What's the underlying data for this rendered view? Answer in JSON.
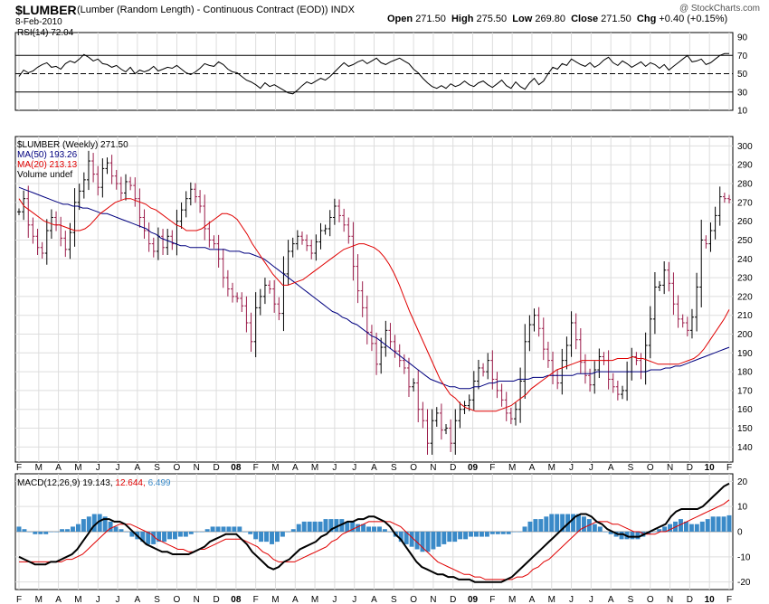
{
  "header": {
    "symbol": "$LUMBER",
    "description": "(Lumber (Random Length) - Continuous Contract (EOD))",
    "exchange": "INDX",
    "date": "8-Feb-2010",
    "watermark": "@ StockCharts.com",
    "open_label": "Open",
    "open_value": "271.50",
    "high_label": "High",
    "high_value": "275.50",
    "low_label": "Low",
    "low_value": "269.80",
    "close_label": "Close",
    "close_value": "271.50",
    "chg_label": "Chg",
    "chg_value": "+0.40 (+0.15%)"
  },
  "colors": {
    "price_bar": "#000000",
    "price_bar_down": "#9b1c4a",
    "ma50": "#00007f",
    "ma20": "#e00000",
    "macd": "#000000",
    "signal": "#e00000",
    "histogram": "#3a8ac8",
    "grid": "#dddddd"
  },
  "rsi_panel": {
    "label": "RSI(14) 72.04"
  },
  "price_panel": {
    "legend_main": "$LUMBER (Weekly) 271.50",
    "legend_ma50": "MA(50) 193.26",
    "legend_ma20": "MA(20) 213.13",
    "legend_volume": "Volume undef"
  },
  "macd_panel": {
    "label_prefix": "MACD(12,26,9)",
    "macd_value": "19.143,",
    "signal_value": "12.644,",
    "hist_value": "6.499"
  },
  "chart_data": [
    {
      "type": "line",
      "panel": "RSI",
      "ylim": [
        10,
        95
      ],
      "y_ticks": [
        10,
        30,
        50,
        70,
        90
      ],
      "reference_lines": [
        30,
        50,
        70
      ],
      "series": [
        {
          "name": "RSI(14)",
          "y": [
            47,
            54,
            51,
            53,
            57,
            60,
            62,
            57,
            58,
            55,
            61,
            64,
            62,
            66,
            71,
            68,
            64,
            66,
            61,
            60,
            57,
            59,
            55,
            52,
            57,
            50,
            54,
            52,
            54,
            58,
            53,
            55,
            57,
            56,
            59,
            55,
            51,
            49,
            52,
            56,
            61,
            59,
            58,
            63,
            60,
            55,
            52,
            51,
            47,
            43,
            41,
            38,
            34,
            40,
            36,
            38,
            35,
            32,
            29,
            28,
            32,
            37,
            41,
            39,
            42,
            45,
            43,
            47,
            52,
            57,
            62,
            58,
            60,
            63,
            65,
            61,
            64,
            67,
            62,
            60,
            63,
            65,
            67,
            64,
            61,
            55,
            51,
            45,
            40,
            36,
            34,
            37,
            34,
            39,
            36,
            38,
            42,
            38,
            36,
            40,
            42,
            38,
            35,
            39,
            43,
            37,
            34,
            41,
            36,
            33,
            40,
            45,
            38,
            42,
            50,
            57,
            55,
            61,
            59,
            66,
            63,
            60,
            58,
            62,
            57,
            60,
            65,
            68,
            62,
            59,
            64,
            61,
            57,
            60,
            63,
            58,
            62,
            60,
            56,
            60,
            54,
            58,
            62,
            66,
            70,
            63,
            64,
            66,
            60,
            62,
            66,
            70,
            72,
            72
          ]
        }
      ]
    },
    {
      "type": "ohlc",
      "panel": "Price",
      "ylim": [
        132,
        305
      ],
      "y_ticks": [
        140,
        150,
        160,
        170,
        180,
        190,
        200,
        210,
        220,
        230,
        240,
        250,
        260,
        270,
        280,
        290,
        300
      ],
      "series": [
        {
          "name": "$LUMBER",
          "close": [
            265,
            272,
            258,
            252,
            246,
            243,
            255,
            262,
            258,
            251,
            245,
            254,
            270,
            276,
            282,
            292,
            285,
            278,
            288,
            291,
            284,
            280,
            275,
            281,
            279,
            272,
            262,
            255,
            248,
            244,
            252,
            246,
            252,
            248,
            260,
            266,
            272,
            277,
            273,
            268,
            256,
            250,
            248,
            240,
            230,
            224,
            220,
            219,
            215,
            206,
            196,
            214,
            220,
            226,
            224,
            216,
            211,
            232,
            244,
            248,
            252,
            250,
            247,
            243,
            249,
            255,
            256,
            262,
            268,
            263,
            258,
            252,
            236,
            223,
            214,
            201,
            195,
            184,
            193,
            202,
            196,
            191,
            186,
            182,
            172,
            174,
            160,
            154,
            142,
            154,
            158,
            149,
            150,
            142,
            154,
            160,
            162,
            165,
            175,
            182,
            180,
            186,
            176,
            170,
            165,
            158,
            155,
            160,
            175,
            196,
            205,
            210,
            203,
            192,
            186,
            178,
            174,
            186,
            194,
            206,
            197,
            185,
            178,
            173,
            181,
            188,
            186,
            176,
            172,
            168,
            170,
            180,
            188,
            186,
            180,
            194,
            208,
            225,
            226,
            234,
            227,
            216,
            208,
            206,
            202,
            209,
            225,
            250,
            248,
            255,
            263,
            273,
            272,
            271.5
          ]
        },
        {
          "name": "MA(50)",
          "y": [
            278,
            277,
            276,
            275,
            274,
            273,
            272,
            271,
            270,
            269,
            269,
            268,
            268,
            267,
            267,
            266,
            265,
            264,
            264,
            263,
            262,
            261,
            260,
            259,
            258,
            257,
            256,
            254,
            253,
            251,
            250,
            249,
            248,
            247,
            247,
            246,
            246,
            246,
            246,
            245,
            245,
            245,
            245,
            244,
            244,
            244,
            243,
            243,
            242,
            241,
            240,
            238,
            236,
            234,
            232,
            230,
            228,
            226,
            224,
            222,
            220,
            218,
            216,
            214,
            212,
            211,
            209,
            208,
            206,
            205,
            203,
            201,
            199,
            198,
            196,
            194,
            192,
            190,
            188,
            186,
            184,
            182,
            180,
            178,
            176,
            175,
            174,
            173,
            172,
            172,
            171,
            171,
            171,
            172,
            172,
            173,
            174,
            174,
            175,
            175,
            175,
            175,
            176,
            176,
            176,
            177,
            177,
            177,
            178,
            178,
            178,
            178,
            178,
            178,
            179,
            179,
            179,
            179,
            180,
            180,
            180,
            180,
            180,
            180,
            180,
            180,
            180,
            180,
            180,
            181,
            181,
            181,
            182,
            182,
            183,
            183,
            184,
            185,
            186,
            187,
            188,
            189,
            190,
            191,
            192,
            193
          ]
        },
        {
          "name": "MA(20)",
          "y": [
            272,
            268,
            266,
            264,
            262,
            260,
            259,
            258,
            258,
            257,
            256,
            255,
            255,
            256,
            258,
            261,
            264,
            266,
            268,
            270,
            271,
            272,
            272,
            271,
            270,
            269,
            267,
            266,
            264,
            262,
            260,
            258,
            257,
            255,
            255,
            255,
            256,
            258,
            260,
            262,
            264,
            264,
            263,
            261,
            257,
            253,
            248,
            244,
            240,
            236,
            232,
            229,
            226,
            226,
            227,
            228,
            229,
            231,
            233,
            235,
            237,
            239,
            241,
            243,
            245,
            246,
            247,
            248,
            248,
            247,
            246,
            244,
            241,
            237,
            232,
            226,
            219,
            212,
            206,
            200,
            194,
            188,
            182,
            176,
            172,
            168,
            166,
            163,
            161,
            160,
            159,
            159,
            159,
            159,
            159,
            160,
            161,
            162,
            164,
            166,
            168,
            171,
            173,
            175,
            177,
            179,
            181,
            182,
            183,
            184,
            185,
            186,
            186,
            186,
            186,
            186,
            186,
            186,
            187,
            187,
            187,
            188,
            187,
            187,
            186,
            185,
            184,
            184,
            184,
            184,
            184,
            185,
            186,
            187,
            189,
            192,
            196,
            200,
            204,
            208,
            213
          ]
        }
      ]
    },
    {
      "type": "line",
      "panel": "MACD",
      "ylim": [
        -23,
        23
      ],
      "y_ticks": [
        -20,
        -10,
        0,
        10,
        20
      ],
      "series": [
        {
          "name": "MACD",
          "y": [
            -10,
            -11,
            -12,
            -13,
            -13,
            -13,
            -12,
            -12,
            -11,
            -10,
            -9,
            -7,
            -4,
            -1,
            2,
            4,
            5,
            5,
            4,
            4,
            3,
            1,
            -1,
            -3,
            -5,
            -6,
            -7,
            -8,
            -8,
            -9,
            -9,
            -9,
            -9,
            -8,
            -7,
            -6,
            -4,
            -3,
            -2,
            -1,
            -1,
            -1,
            -3,
            -5,
            -8,
            -10,
            -12,
            -14,
            -15,
            -14,
            -12,
            -11,
            -9,
            -7,
            -6,
            -5,
            -4,
            -2,
            -1,
            1,
            2,
            3,
            4,
            4,
            5,
            5,
            6,
            6,
            5,
            4,
            2,
            -1,
            -3,
            -6,
            -9,
            -12,
            -14,
            -15,
            -16,
            -17,
            -17,
            -18,
            -18,
            -19,
            -19,
            -19,
            -20,
            -20,
            -20,
            -20,
            -20,
            -20,
            -19,
            -18,
            -16,
            -14,
            -12,
            -10,
            -8,
            -6,
            -4,
            -2,
            0,
            2,
            4,
            6,
            7,
            7,
            6,
            4,
            3,
            1,
            0,
            -1,
            -1,
            -2,
            -2,
            -2,
            -1,
            0,
            1,
            2,
            3,
            6,
            8,
            9,
            9,
            9,
            9,
            10,
            12,
            14,
            16,
            18,
            19.143
          ]
        },
        {
          "name": "Signal",
          "y": [
            -12,
            -12,
            -12,
            -12,
            -12,
            -12,
            -12,
            -12,
            -12,
            -11,
            -11,
            -10,
            -9,
            -7,
            -5,
            -3,
            -1,
            1,
            2,
            3,
            3,
            3,
            2,
            1,
            0,
            -1,
            -3,
            -4,
            -5,
            -6,
            -7,
            -7,
            -8,
            -8,
            -7,
            -7,
            -6,
            -5,
            -4,
            -3,
            -3,
            -3,
            -3,
            -4,
            -5,
            -6,
            -8,
            -9,
            -11,
            -12,
            -12,
            -12,
            -12,
            -11,
            -10,
            -9,
            -8,
            -7,
            -6,
            -4,
            -3,
            -1,
            0,
            1,
            2,
            3,
            4,
            4,
            4,
            4,
            4,
            3,
            2,
            0,
            -2,
            -4,
            -6,
            -8,
            -10,
            -12,
            -13,
            -14,
            -15,
            -16,
            -17,
            -17,
            -18,
            -18,
            -19,
            -19,
            -19,
            -19,
            -19,
            -19,
            -18,
            -18,
            -17,
            -15,
            -14,
            -12,
            -11,
            -9,
            -7,
            -5,
            -3,
            -1,
            1,
            2,
            3,
            4,
            4,
            4,
            3,
            3,
            2,
            1,
            0,
            0,
            -1,
            -1,
            -1,
            0,
            0,
            1,
            2,
            3,
            4,
            5,
            6,
            7,
            8,
            9,
            10,
            11,
            12.644
          ]
        },
        {
          "name": "Histogram",
          "y": [
            2,
            1,
            0,
            -1,
            -1,
            -1,
            0,
            0,
            1,
            1,
            2,
            3,
            5,
            6,
            7,
            7,
            6,
            4,
            2,
            1,
            0,
            -2,
            -3,
            -4,
            -5,
            -5,
            -4,
            -4,
            -3,
            -3,
            -2,
            -2,
            -1,
            0,
            0,
            1,
            2,
            2,
            2,
            2,
            2,
            2,
            0,
            -1,
            -3,
            -4,
            -4,
            -5,
            -4,
            -2,
            0,
            1,
            3,
            4,
            4,
            4,
            4,
            5,
            5,
            5,
            5,
            4,
            4,
            3,
            3,
            2,
            2,
            2,
            1,
            0,
            -2,
            -4,
            -5,
            -6,
            -7,
            -8,
            -8,
            -7,
            -6,
            -5,
            -4,
            -4,
            -3,
            -3,
            -2,
            -2,
            -2,
            -2,
            -1,
            -1,
            -1,
            -1,
            0,
            0,
            2,
            4,
            5,
            5,
            6,
            7,
            7,
            7,
            7,
            7,
            7,
            6,
            5,
            3,
            2,
            0,
            -1,
            -2,
            -3,
            -3,
            -3,
            -3,
            -2,
            -1,
            0,
            1,
            2,
            3,
            4,
            5,
            4,
            3,
            3,
            4,
            5,
            6,
            6,
            6,
            6.499
          ]
        }
      ]
    }
  ],
  "x_axis": {
    "labels": [
      "F",
      "M",
      "A",
      "M",
      "J",
      "J",
      "A",
      "S",
      "O",
      "N",
      "D",
      "08",
      "F",
      "M",
      "A",
      "M",
      "J",
      "J",
      "A",
      "S",
      "O",
      "N",
      "D",
      "09",
      "F",
      "M",
      "A",
      "M",
      "J",
      "J",
      "A",
      "S",
      "O",
      "N",
      "D",
      "10",
      "F"
    ],
    "bold_labels": [
      "08",
      "09",
      "10"
    ]
  }
}
